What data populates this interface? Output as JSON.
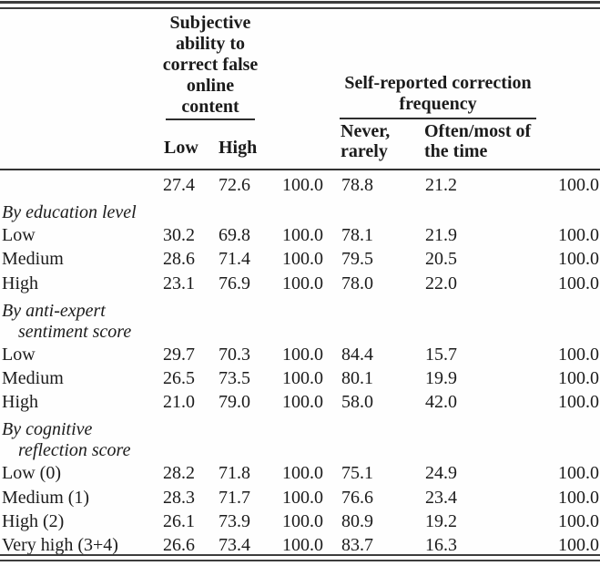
{
  "header": {
    "group1": {
      "title_lines": [
        "Subjective",
        "ability to",
        "correct false",
        "online",
        "content"
      ],
      "col1": "Low",
      "col2": "High"
    },
    "group2": {
      "title_lines": [
        "Self-reported correction",
        "frequency"
      ],
      "col1_lines": [
        "Never,",
        "rarely"
      ],
      "col2_lines": [
        "Often/most of",
        "the time"
      ]
    }
  },
  "rows": [
    {
      "type": "data",
      "label": "",
      "values": [
        "27.4",
        "72.6",
        "100.0",
        "78.8",
        "21.2",
        "100.0"
      ]
    },
    {
      "type": "section",
      "lines": [
        "By education level"
      ]
    },
    {
      "type": "data",
      "label": "Low",
      "values": [
        "30.2",
        "69.8",
        "100.0",
        "78.1",
        "21.9",
        "100.0"
      ]
    },
    {
      "type": "data",
      "label": "Medium",
      "values": [
        "28.6",
        "71.4",
        "100.0",
        "79.5",
        "20.5",
        "100.0"
      ]
    },
    {
      "type": "data",
      "label": "High",
      "values": [
        "23.1",
        "76.9",
        "100.0",
        "78.0",
        "22.0",
        "100.0"
      ]
    },
    {
      "type": "section",
      "lines": [
        "By anti-expert",
        "sentiment score"
      ]
    },
    {
      "type": "data",
      "label": "Low",
      "values": [
        "29.7",
        "70.3",
        "100.0",
        "84.4",
        "15.7",
        "100.0"
      ]
    },
    {
      "type": "data",
      "label": "Medium",
      "values": [
        "26.5",
        "73.5",
        "100.0",
        "80.1",
        "19.9",
        "100.0"
      ]
    },
    {
      "type": "data",
      "label": "High",
      "values": [
        "21.0",
        "79.0",
        "100.0",
        "58.0",
        "42.0",
        "100.0"
      ]
    },
    {
      "type": "section",
      "lines": [
        "By cognitive",
        "reflection score"
      ]
    },
    {
      "type": "data",
      "label": "Low (0)",
      "values": [
        "28.2",
        "71.8",
        "100.0",
        "75.1",
        "24.9",
        "100.0"
      ]
    },
    {
      "type": "data",
      "label": "Medium (1)",
      "values": [
        "28.3",
        "71.7",
        "100.0",
        "76.6",
        "23.4",
        "100.0"
      ]
    },
    {
      "type": "data",
      "label": "High (2)",
      "values": [
        "26.1",
        "73.9",
        "100.0",
        "80.9",
        "19.2",
        "100.0"
      ]
    },
    {
      "type": "data",
      "label": "Very high (3+4)",
      "values": [
        "26.6",
        "73.4",
        "100.0",
        "83.7",
        "16.3",
        "100.0"
      ]
    }
  ],
  "colors": {
    "text": "#1b1b1b",
    "rule": "#3d3d3d",
    "background": "#fefefe"
  }
}
